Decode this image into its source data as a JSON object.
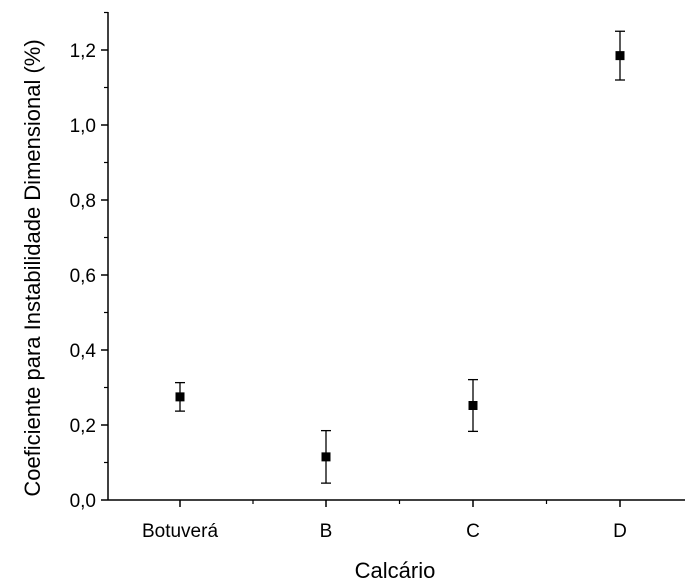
{
  "chart_data": {
    "type": "scatter",
    "title": "",
    "xlabel": "Calcário",
    "ylabel": "Coeficiente para Instabilidade Dimensional (%)",
    "categories": [
      "Botuverá",
      "B",
      "C",
      "D"
    ],
    "series": [
      {
        "values": [
          0.275,
          0.115,
          0.252,
          1.185
        ],
        "error_low": [
          0.237,
          0.045,
          0.183,
          1.12
        ],
        "error_high": [
          0.313,
          0.185,
          0.321,
          1.25
        ]
      }
    ],
    "ylim": [
      0.0,
      1.3
    ],
    "y_ticks": [
      "0,0",
      "0,2",
      "0,4",
      "0,6",
      "0,8",
      "1,0",
      "1,2"
    ],
    "y_tick_values": [
      0.0,
      0.2,
      0.4,
      0.6,
      0.8,
      1.0,
      1.2
    ],
    "grid": false,
    "legend": "none",
    "marker": "square",
    "color": "#000000"
  }
}
